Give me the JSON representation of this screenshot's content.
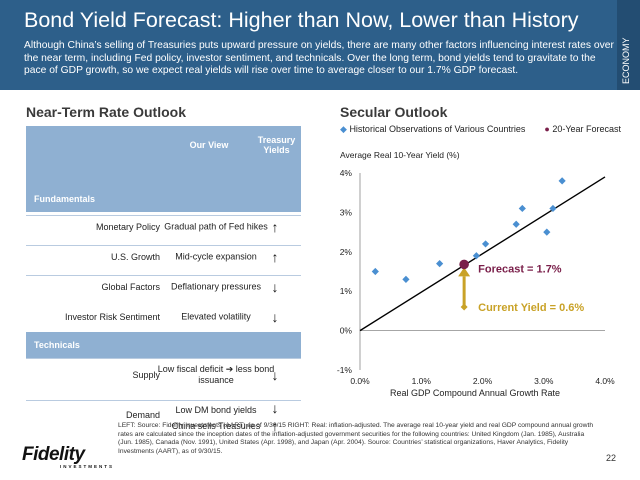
{
  "header": {
    "title": "Bond Yield Forecast: Higher than Now, Lower than History",
    "subtitle": "Although China’s selling of Treasuries puts upward pressure on yields, there are many other factors influencing interest rates over the near term, including Fed policy, investor sentiment, and technicals. Over the long term, bond yields tend to gravitate to the pace of GDP growth, so we expect real yields will rise over time to average closer to our 1.7% GDP forecast.",
    "side_tab": "ECONOMY"
  },
  "near_term": {
    "title": "Near-Term Rate Outlook",
    "col_view": "Our View",
    "col_yields": "Treasury Yields",
    "fundamentals_label": "Fundamentals",
    "technicals_label": "Technicals",
    "fundamentals": [
      {
        "factor": "Monetary Policy",
        "view": "Gradual path of Fed hikes",
        "arrow": "↑"
      },
      {
        "factor": "U.S. Growth",
        "view": "Mid-cycle expansion",
        "arrow": "↑"
      },
      {
        "factor": "Global Factors",
        "view": "Deflationary pressures",
        "arrow": "↓"
      },
      {
        "factor": "Investor Risk Sentiment",
        "view": "Elevated volatility",
        "arrow": "↓"
      }
    ],
    "technicals": [
      {
        "factor": "Supply",
        "view": "Low fiscal deficit ➔ less bond issuance",
        "arrow": "↓"
      },
      {
        "factor": "Demand",
        "view": "Low DM bond yields",
        "arrow": "↓"
      },
      {
        "factor": "",
        "view": "China sells Treasuries",
        "arrow": "↑"
      }
    ]
  },
  "secular": {
    "title": "Secular Outlook",
    "legend_hist": "Historical Observations of Various Countries",
    "legend_fcst": "20-Year Forecast",
    "forecast_label": "Forecast = 1.7%",
    "current_label": "Current Yield = 0.6%"
  },
  "colors": {
    "header_bg": "#2d5f8a",
    "table_header": "#8fb0d2",
    "hist_marker": "#4a8fd1",
    "forecast_marker": "#7a1f4a",
    "current_arrow": "#c9a227"
  },
  "chart_data": {
    "type": "scatter",
    "ylabel": "Average Real 10-Year Yield (%)",
    "xlabel": "Real GDP Compound Annual Growth Rate",
    "xlim": [
      0,
      4
    ],
    "ylim": [
      -1,
      4
    ],
    "x_ticks": [
      "0.0%",
      "1.0%",
      "2.0%",
      "3.0%",
      "4.0%"
    ],
    "y_ticks": [
      "-1%",
      "0%",
      "1%",
      "2%",
      "3%",
      "4%"
    ],
    "series": [
      {
        "name": "Historical Observations of Various Countries",
        "points": [
          [
            0.25,
            1.5
          ],
          [
            0.75,
            1.3
          ],
          [
            1.3,
            1.7
          ],
          [
            1.9,
            1.9
          ],
          [
            2.05,
            2.2
          ],
          [
            2.55,
            2.7
          ],
          [
            2.65,
            3.1
          ],
          [
            3.05,
            2.5
          ],
          [
            3.15,
            3.1
          ],
          [
            3.3,
            3.8
          ]
        ]
      },
      {
        "name": "20-Year Forecast",
        "points": [
          [
            1.7,
            1.68
          ]
        ]
      }
    ],
    "trend_line": [
      [
        0,
        0
      ],
      [
        4,
        3.9
      ]
    ],
    "current_yield": 0.6
  },
  "footnote": "LEFT: Source: Fidelity Investments (AART) as of 9/30/15 RIGHT: Real: inflation-adjusted. The average real 10-year yield and real GDP compound annual growth rates are calculated since the inception dates of the inflation-adjusted government securities for the following countries: United Kingdom (Jan. 1985), Australia (Jun. 1985), Canada (Nov. 1991), United States (Apr. 1998), and Japan (Apr. 2004). Source: Countries’ statistical organizations, Haver Analytics, Fidelity Investments (AART), as of 9/30/15.",
  "logo": {
    "main": "Fidelity",
    "small": "INVESTMENTS"
  },
  "page_number": "22"
}
